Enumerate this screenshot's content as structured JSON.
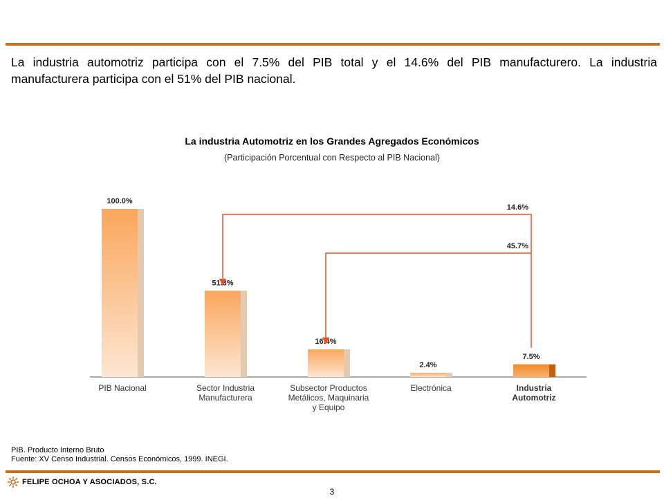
{
  "intro_lines": [
    "La industria automotriz participa con el 7.5% del PIB total y el 14.6% del PIB manufacturero. La industria",
    "manufacturera participa con el 51% del PIB nacional."
  ],
  "chart_data": {
    "type": "bar",
    "title": "La industria Automotriz en los Grandes Agregados Económicos",
    "subtitle": "(Participación Porcentual con Respecto al PIB Nacional)",
    "ylim": [
      0,
      100
    ],
    "categories": [
      {
        "lines": [
          "PIB Nacional"
        ],
        "bold": false
      },
      {
        "lines": [
          "Sector Industria",
          "Manufacturera"
        ],
        "bold": false
      },
      {
        "lines": [
          "Subsector Productos",
          "Metálicos, Maquinaria",
          "y Equipo"
        ],
        "bold": false
      },
      {
        "lines": [
          "Electrónica"
        ],
        "bold": false
      },
      {
        "lines": [
          "Industria",
          "Automotriz"
        ],
        "bold": true
      }
    ],
    "values": [
      100.0,
      51.3,
      16.4,
      2.4,
      7.5
    ],
    "value_labels": [
      "100.0%",
      "51.3%",
      "16.4%",
      "2.4%",
      "7.5%"
    ],
    "highlight_index": 4,
    "annotations": [
      {
        "label": "14.6%",
        "from": 4,
        "to": 1
      },
      {
        "label": "45.7%",
        "from": 4,
        "to": 2
      }
    ],
    "colors": {
      "bar_top": "#f9a75c",
      "bar_bottom": "#fde6d2",
      "highlight_top": "#f08a2e",
      "highlight_bottom": "#f9b06a",
      "side": "#e2c9b0",
      "highlight_side": "#c25f10",
      "arrow": "#e8502a",
      "axis": "#555555"
    }
  },
  "notes": [
    "PIB. Producto Interno Bruto",
    "Fuente: XV Censo Industrial. Censos Económicos, 1999. INEGI."
  ],
  "footer": {
    "company": "FELIPE OCHOA Y ASOCIADOS, S.C.",
    "page_number": "3"
  }
}
